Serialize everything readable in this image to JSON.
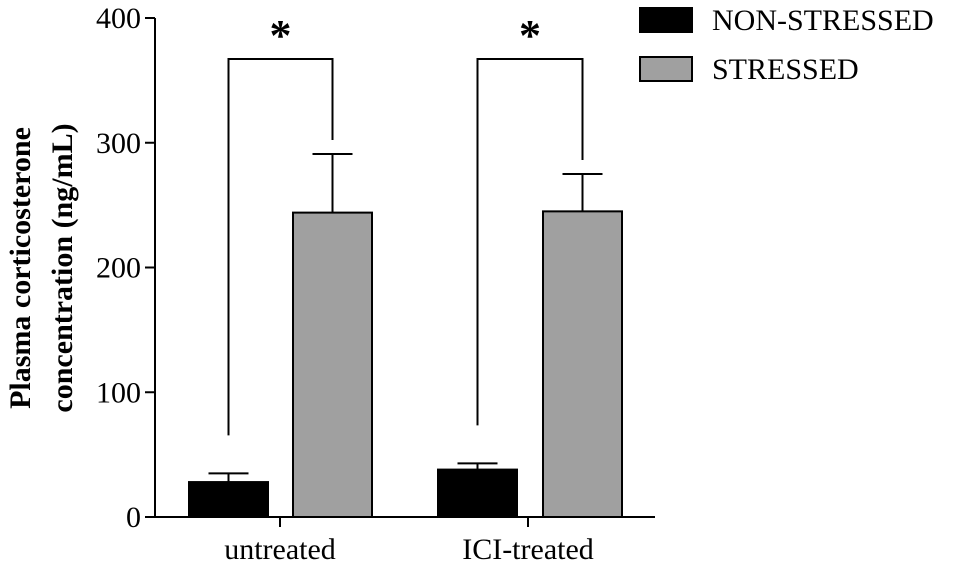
{
  "chart_data": {
    "type": "bar",
    "ylabel": "Plasma corticosterone concentration (ng/mL)",
    "ylabel_lines": [
      "Plasma corticosterone",
      "concentration (ng/mL)"
    ],
    "xlabel": "",
    "ylim": [
      0,
      400
    ],
    "yticks": [
      "0",
      "100",
      "200",
      "300",
      "400"
    ],
    "categories": [
      "untreated",
      "ICI-treated"
    ],
    "series": [
      {
        "name": "NON-STRESSED",
        "color": "#000000",
        "values": [
          28,
          38
        ],
        "errors": [
          7,
          5
        ]
      },
      {
        "name": "STRESSED",
        "color": "#a0a0a0",
        "values": [
          244,
          245
        ],
        "errors": [
          47,
          30
        ]
      }
    ],
    "significance": [
      "*",
      "*"
    ],
    "legend": {
      "placement": "top-right",
      "entries": [
        "NON-STRESSED",
        "STRESSED"
      ]
    },
    "grid": false
  }
}
